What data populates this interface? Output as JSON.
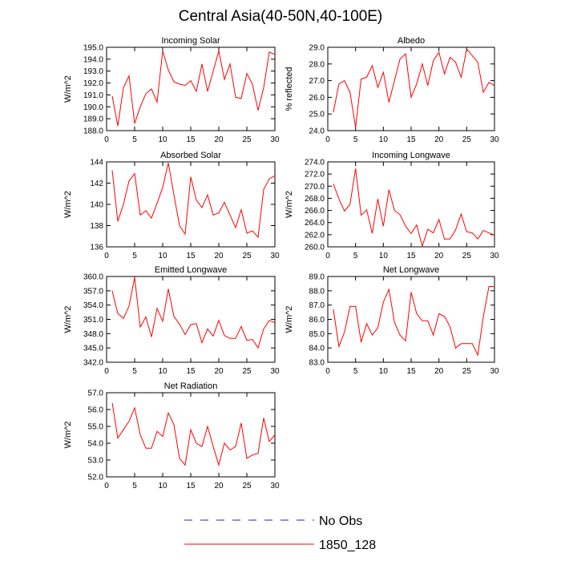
{
  "title": "Central Asia(40-50N,40-100E)",
  "legend": {
    "obs_label": "No Obs",
    "model_label": "1850_128",
    "obs_color": "#2222aa",
    "model_color": "#ff0000"
  },
  "chart_data": [
    {
      "type": "line",
      "title": "Incoming Solar",
      "ylabel": "W/m^2",
      "xlabel": "",
      "xlim": [
        0,
        30
      ],
      "ylim": [
        188.0,
        195.0
      ],
      "xticks": [
        "0",
        "5",
        "10",
        "15",
        "20",
        "25",
        "30"
      ],
      "yticks": [
        "188.0",
        "189.0",
        "190.0",
        "191.0",
        "192.0",
        "193.0",
        "194.0",
        "195.0"
      ],
      "x": [
        1,
        2,
        3,
        4,
        5,
        6,
        7,
        8,
        9,
        10,
        11,
        12,
        13,
        14,
        15,
        16,
        17,
        18,
        19,
        20,
        21,
        22,
        23,
        24,
        25,
        26,
        27,
        28,
        29,
        30
      ],
      "series": [
        {
          "name": "1850_128",
          "values": [
            190.9,
            188.4,
            191.6,
            192.6,
            188.6,
            190.0,
            191.1,
            191.5,
            190.4,
            194.7,
            193.1,
            192.1,
            191.9,
            191.8,
            192.2,
            191.3,
            193.6,
            191.3,
            193.0,
            194.7,
            192.3,
            193.6,
            190.8,
            190.7,
            192.8,
            191.9,
            189.7,
            191.6,
            194.6,
            194.4
          ]
        }
      ]
    },
    {
      "type": "line",
      "title": "Albedo",
      "ylabel": "% reflected",
      "xlabel": "",
      "xlim": [
        0,
        30
      ],
      "ylim": [
        24.0,
        29.0
      ],
      "xticks": [
        "0",
        "5",
        "10",
        "15",
        "20",
        "25",
        "30"
      ],
      "yticks": [
        "24.0",
        "25.0",
        "26.0",
        "27.0",
        "28.0",
        "29.0"
      ],
      "x": [
        1,
        2,
        3,
        4,
        5,
        6,
        7,
        8,
        9,
        10,
        11,
        12,
        13,
        14,
        15,
        16,
        17,
        18,
        19,
        20,
        21,
        22,
        23,
        24,
        25,
        26,
        27,
        28,
        29,
        30
      ],
      "series": [
        {
          "name": "1850_128",
          "values": [
            25.1,
            26.8,
            27.0,
            26.3,
            24.2,
            27.1,
            27.2,
            27.9,
            26.6,
            27.5,
            25.7,
            27.0,
            28.3,
            28.6,
            26.0,
            26.8,
            28.0,
            26.7,
            28.2,
            28.7,
            27.4,
            28.4,
            28.1,
            27.2,
            28.9,
            28.5,
            28.1,
            26.3,
            26.9,
            26.7
          ]
        }
      ]
    },
    {
      "type": "line",
      "title": "Absorbed Solar",
      "ylabel": "W/m^2",
      "xlabel": "",
      "xlim": [
        0,
        30
      ],
      "ylim": [
        136,
        144
      ],
      "xticks": [
        "0",
        "5",
        "10",
        "15",
        "20",
        "25",
        "30"
      ],
      "yticks": [
        "136",
        "138",
        "140",
        "142",
        "144"
      ],
      "x": [
        1,
        2,
        3,
        4,
        5,
        6,
        7,
        8,
        9,
        10,
        11,
        12,
        13,
        14,
        15,
        16,
        17,
        18,
        19,
        20,
        21,
        22,
        23,
        24,
        25,
        26,
        27,
        28,
        29,
        30
      ],
      "series": [
        {
          "name": "1850_128",
          "values": [
            143.2,
            138.4,
            140.0,
            142.2,
            142.9,
            139.0,
            139.4,
            138.7,
            140.1,
            141.6,
            143.9,
            140.9,
            138.0,
            137.2,
            142.6,
            140.4,
            139.7,
            140.9,
            139.0,
            139.2,
            140.2,
            139.0,
            137.8,
            139.5,
            137.3,
            137.5,
            136.9,
            141.4,
            142.4,
            142.7
          ]
        }
      ]
    },
    {
      "type": "line",
      "title": "Incoming Longwave",
      "ylabel": "W/m^2",
      "xlabel": "",
      "xlim": [
        0,
        30
      ],
      "ylim": [
        260.0,
        274.0
      ],
      "xticks": [
        "0",
        "5",
        "10",
        "15",
        "20",
        "25",
        "30"
      ],
      "yticks": [
        "260.0",
        "262.0",
        "264.0",
        "266.0",
        "268.0",
        "270.0",
        "272.0",
        "274.0"
      ],
      "x": [
        1,
        2,
        3,
        4,
        5,
        6,
        7,
        8,
        9,
        10,
        11,
        12,
        13,
        14,
        15,
        16,
        17,
        18,
        19,
        20,
        21,
        22,
        23,
        24,
        25,
        26,
        27,
        28,
        29,
        30
      ],
      "series": [
        {
          "name": "1850_128",
          "values": [
            270.4,
            267.9,
            265.9,
            267.0,
            272.9,
            265.2,
            266.1,
            262.2,
            267.9,
            263.4,
            269.4,
            266.0,
            265.3,
            263.4,
            262.2,
            263.6,
            260.1,
            262.9,
            262.3,
            264.5,
            261.3,
            261.3,
            262.8,
            265.4,
            262.5,
            262.3,
            261.3,
            262.7,
            262.3,
            261.9
          ]
        }
      ]
    },
    {
      "type": "line",
      "title": "Emitted Longwave",
      "ylabel": "W/m^2",
      "xlabel": "",
      "xlim": [
        0,
        30
      ],
      "ylim": [
        342.0,
        360.0
      ],
      "xticks": [
        "0",
        "5",
        "10",
        "15",
        "20",
        "25",
        "30"
      ],
      "yticks": [
        "342.0",
        "345.0",
        "348.0",
        "351.0",
        "354.0",
        "357.0",
        "360.0"
      ],
      "x": [
        1,
        2,
        3,
        4,
        5,
        6,
        7,
        8,
        9,
        10,
        11,
        12,
        13,
        14,
        15,
        16,
        17,
        18,
        19,
        20,
        21,
        22,
        23,
        24,
        25,
        26,
        27,
        28,
        29,
        30
      ],
      "series": [
        {
          "name": "1850_128",
          "values": [
            357.0,
            352.2,
            351.2,
            353.8,
            359.8,
            349.4,
            351.5,
            347.3,
            353.3,
            350.6,
            357.4,
            351.6,
            350.0,
            347.8,
            349.9,
            350.1,
            346.1,
            349.0,
            347.5,
            350.8,
            347.6,
            347.0,
            347.0,
            349.5,
            346.6,
            346.8,
            345.0,
            349.0,
            350.8,
            350.3
          ]
        }
      ]
    },
    {
      "type": "line",
      "title": "Net Longwave",
      "ylabel": "W/m^2",
      "xlabel": "",
      "xlim": [
        0,
        30
      ],
      "ylim": [
        83.0,
        89.0
      ],
      "xticks": [
        "0",
        "5",
        "10",
        "15",
        "20",
        "25",
        "30"
      ],
      "yticks": [
        "83.0",
        "84.0",
        "85.0",
        "86.0",
        "87.0",
        "88.0",
        "89.0"
      ],
      "x": [
        1,
        2,
        3,
        4,
        5,
        6,
        7,
        8,
        9,
        10,
        11,
        12,
        13,
        14,
        15,
        16,
        17,
        18,
        19,
        20,
        21,
        22,
        23,
        24,
        25,
        26,
        27,
        28,
        29,
        30
      ],
      "series": [
        {
          "name": "1850_128",
          "values": [
            86.7,
            84.1,
            85.1,
            86.9,
            86.9,
            84.4,
            85.7,
            84.9,
            85.4,
            87.2,
            88.1,
            85.8,
            84.9,
            84.5,
            87.9,
            86.4,
            85.9,
            85.9,
            84.9,
            86.4,
            86.2,
            85.5,
            84.0,
            84.3,
            84.3,
            84.3,
            83.5,
            86.2,
            88.3,
            88.3
          ]
        }
      ]
    },
    {
      "type": "line",
      "title": "Net Radiation",
      "ylabel": "W/m^2",
      "xlabel": "",
      "xlim": [
        0,
        30
      ],
      "ylim": [
        52.0,
        57.0
      ],
      "xticks": [
        "0",
        "5",
        "10",
        "15",
        "20",
        "25",
        "30"
      ],
      "yticks": [
        "52.0",
        "53.0",
        "54.0",
        "55.0",
        "56.0",
        "57.0"
      ],
      "x": [
        1,
        2,
        3,
        4,
        5,
        6,
        7,
        8,
        9,
        10,
        11,
        12,
        13,
        14,
        15,
        16,
        17,
        18,
        19,
        20,
        21,
        22,
        23,
        24,
        25,
        26,
        27,
        28,
        29,
        30
      ],
      "series": [
        {
          "name": "1850_128",
          "values": [
            56.4,
            54.3,
            54.8,
            55.3,
            56.1,
            54.5,
            53.7,
            53.7,
            54.7,
            54.4,
            55.8,
            55.1,
            53.1,
            52.7,
            54.8,
            54.0,
            53.8,
            55.0,
            53.8,
            52.7,
            54.0,
            53.6,
            53.8,
            55.2,
            53.1,
            53.3,
            53.4,
            55.5,
            54.1,
            54.5
          ]
        }
      ]
    }
  ]
}
